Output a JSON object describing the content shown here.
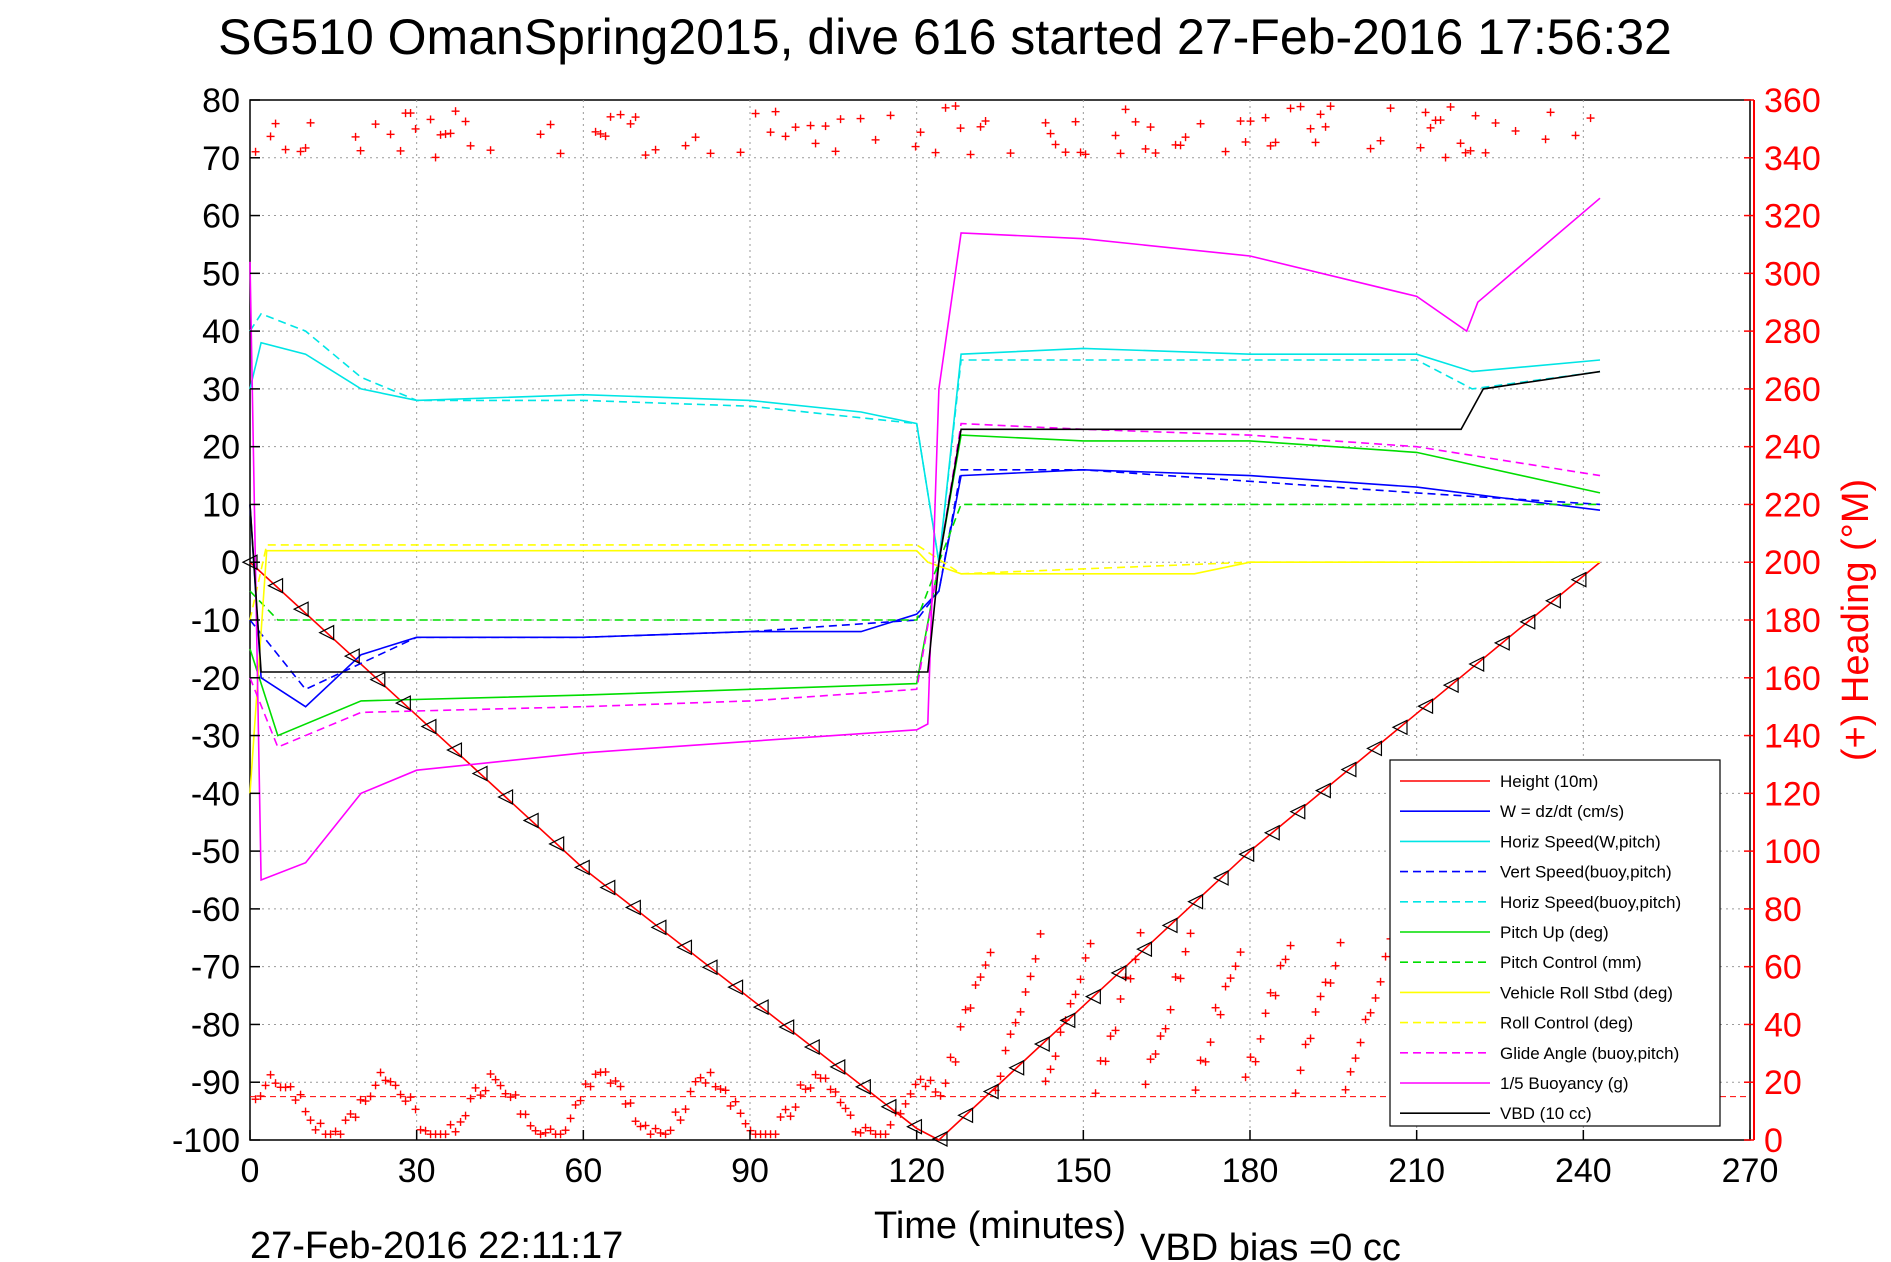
{
  "title": "SG510 OmanSpring2015, dive 616 started 27-Feb-2016 17:56:32",
  "footer_left": "27-Feb-2016 22:11:17",
  "footer_right": "VBD bias =0 cc",
  "chart_data": {
    "type": "line",
    "xlabel": "Time (minutes)",
    "ylabel": "",
    "ylabel_right": "(+) Heading (°M)",
    "xlim": [
      0,
      270
    ],
    "ylim": [
      -100,
      80
    ],
    "ylim_right": [
      0,
      360
    ],
    "x_ticks": [
      "0",
      "30",
      "60",
      "90",
      "120",
      "150",
      "180",
      "210",
      "240",
      "270"
    ],
    "y_ticks": [
      "-100",
      "-90",
      "-80",
      "-70",
      "-60",
      "-50",
      "-40",
      "-30",
      "-20",
      "-10",
      "0",
      "10",
      "20",
      "30",
      "40",
      "50",
      "60",
      "70",
      "80"
    ],
    "y_ticks_right": [
      "0",
      "20",
      "40",
      "60",
      "80",
      "100",
      "120",
      "140",
      "160",
      "180",
      "200",
      "220",
      "240",
      "260",
      "280",
      "300",
      "320",
      "340",
      "360"
    ],
    "grid": true,
    "legend_position": "bottom-right",
    "series": [
      {
        "name": "Height (10m)",
        "color": "#ff0000",
        "style": "solid",
        "x": [
          0,
          60,
          120,
          124,
          180,
          243
        ],
        "y": [
          0,
          -53,
          -98,
          -100,
          -50,
          0
        ]
      },
      {
        "name": "W = dz/dt (cm/s)",
        "color": "#0000ff",
        "style": "solid",
        "x": [
          0,
          2,
          10,
          20,
          30,
          60,
          90,
          100,
          110,
          120,
          124,
          128,
          150,
          180,
          210,
          243
        ],
        "y": [
          10,
          -20,
          -25,
          -16,
          -13,
          -13,
          -12,
          -12,
          -12,
          -9,
          -5,
          15,
          16,
          15,
          13,
          9
        ]
      },
      {
        "name": "Horiz Speed(W,pitch)",
        "color": "#00e5e5",
        "style": "solid",
        "x": [
          0,
          2,
          10,
          20,
          30,
          60,
          90,
          110,
          120,
          124,
          128,
          150,
          180,
          210,
          220,
          243
        ],
        "y": [
          30,
          38,
          36,
          30,
          28,
          29,
          28,
          26,
          24,
          0,
          36,
          37,
          36,
          36,
          33,
          35
        ]
      },
      {
        "name": "Vert Speed(buoy,pitch)",
        "color": "#0000ff",
        "style": "dashed",
        "x": [
          0,
          10,
          30,
          60,
          90,
          120,
          124,
          128,
          150,
          180,
          210,
          243
        ],
        "y": [
          -10,
          -22,
          -13,
          -13,
          -12,
          -10,
          -5,
          16,
          16,
          14,
          12,
          10
        ]
      },
      {
        "name": "Horiz Speed(buoy,pitch)",
        "color": "#00e5e5",
        "style": "dashed",
        "x": [
          0,
          2,
          10,
          20,
          30,
          60,
          90,
          120,
          124,
          128,
          150,
          180,
          210,
          220,
          243
        ],
        "y": [
          40,
          43,
          40,
          32,
          28,
          28,
          27,
          24,
          0,
          35,
          35,
          35,
          35,
          30,
          33
        ]
      },
      {
        "name": "Pitch Up (deg)",
        "color": "#00dd00",
        "style": "solid",
        "x": [
          0,
          5,
          20,
          60,
          90,
          120,
          124,
          128,
          150,
          180,
          210,
          243
        ],
        "y": [
          -15,
          -30,
          -24,
          -23,
          -22,
          -21,
          0,
          22,
          21,
          21,
          19,
          12
        ]
      },
      {
        "name": "Pitch Control (mm)",
        "color": "#00dd00",
        "style": "dashed",
        "x": [
          0,
          5,
          20,
          60,
          90,
          120,
          124,
          128,
          150,
          180,
          210,
          243
        ],
        "y": [
          -5,
          -10,
          -10,
          -10,
          -10,
          -10,
          0,
          10,
          10,
          10,
          10,
          10
        ]
      },
      {
        "name": "Vehicle Roll Stbd (deg)",
        "color": "#ffff00",
        "style": "solid",
        "x": [
          0,
          3,
          60,
          120,
          122,
          128,
          170,
          180,
          210,
          243
        ],
        "y": [
          -40,
          2,
          2,
          2,
          0,
          -2,
          -2,
          0,
          0,
          0
        ]
      },
      {
        "name": "Roll Control (deg)",
        "color": "#ffff00",
        "style": "dashed",
        "x": [
          0,
          3,
          60,
          120,
          128,
          180,
          243
        ],
        "y": [
          -10,
          3,
          3,
          3,
          -2,
          0,
          0
        ]
      },
      {
        "name": "Glide Angle (buoy,pitch)",
        "color": "#ff00ff",
        "style": "dashed",
        "x": [
          0,
          5,
          20,
          60,
          90,
          120,
          124,
          128,
          150,
          180,
          210,
          243
        ],
        "y": [
          -20,
          -32,
          -26,
          -25,
          -24,
          -22,
          0,
          24,
          23,
          22,
          20,
          15
        ]
      },
      {
        "name": "1/5 Buoyancy (g)",
        "color": "#ff00ff",
        "style": "solid",
        "x": [
          0,
          2,
          10,
          20,
          30,
          60,
          90,
          120,
          122,
          124,
          128,
          150,
          180,
          210,
          219,
          221,
          243
        ],
        "y": [
          52,
          -55,
          -52,
          -40,
          -36,
          -33,
          -31,
          -29,
          -28,
          30,
          57,
          56,
          53,
          46,
          40,
          45,
          63
        ]
      },
      {
        "name": "VBD (10 cc)",
        "color": "#000000",
        "style": "solid",
        "x": [
          0,
          2,
          120,
          122,
          124,
          128,
          150,
          180,
          210,
          218,
          222,
          243
        ],
        "y": [
          10,
          -19,
          -19,
          -19,
          0,
          23,
          23,
          23,
          23,
          23,
          30,
          33
        ]
      }
    ],
    "heading_color": "#ff0000",
    "heading_label": "(+) Heading (°M)",
    "heading_ref_line": {
      "value": 15,
      "axis": "right",
      "style": "dashed"
    }
  }
}
